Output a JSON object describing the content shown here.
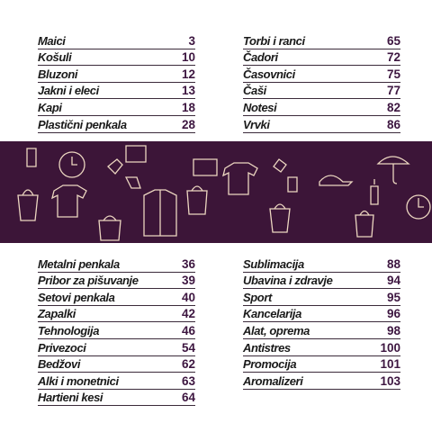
{
  "toc": {
    "top": {
      "left": [
        {
          "label": "Maici",
          "page": 3
        },
        {
          "label": "Košuli",
          "page": 10
        },
        {
          "label": "Bluzoni",
          "page": 12
        },
        {
          "label": "Jakni i eleci",
          "page": 13
        },
        {
          "label": "Kapi",
          "page": 18
        },
        {
          "label": "Plastični penkala",
          "page": 28
        }
      ],
      "right": [
        {
          "label": "Torbi i ranci",
          "page": 65
        },
        {
          "label": "Čadori",
          "page": 72
        },
        {
          "label": "Časovnici",
          "page": 75
        },
        {
          "label": "Čaši",
          "page": 77
        },
        {
          "label": "Notesi",
          "page": 82
        },
        {
          "label": "Vrvki",
          "page": 86
        }
      ]
    },
    "bottom": {
      "left": [
        {
          "label": "Metalni penkala",
          "page": 36
        },
        {
          "label": "Pribor za pišuvanje",
          "page": 39
        },
        {
          "label": "Setovi penkala",
          "page": 40
        },
        {
          "label": "Zapalki",
          "page": 42
        },
        {
          "label": "Tehnologija",
          "page": 46
        },
        {
          "label": "Privezoci",
          "page": 54
        },
        {
          "label": "Bedžovi",
          "page": 62
        },
        {
          "label": "Alki i monetnici",
          "page": 63
        },
        {
          "label": "Hartieni kesi",
          "page": 64
        }
      ],
      "right": [
        {
          "label": "Sublimacija",
          "page": 88
        },
        {
          "label": "Ubavina i zdravje",
          "page": 94
        },
        {
          "label": "Sport",
          "page": 95
        },
        {
          "label": "Kancelarija",
          "page": 96
        },
        {
          "label": "Alat, oprema",
          "page": 98
        },
        {
          "label": "Antistres",
          "page": 100
        },
        {
          "label": "Promocija",
          "page": 101
        },
        {
          "label": "Aromalizeri",
          "page": 103
        }
      ]
    }
  }
}
